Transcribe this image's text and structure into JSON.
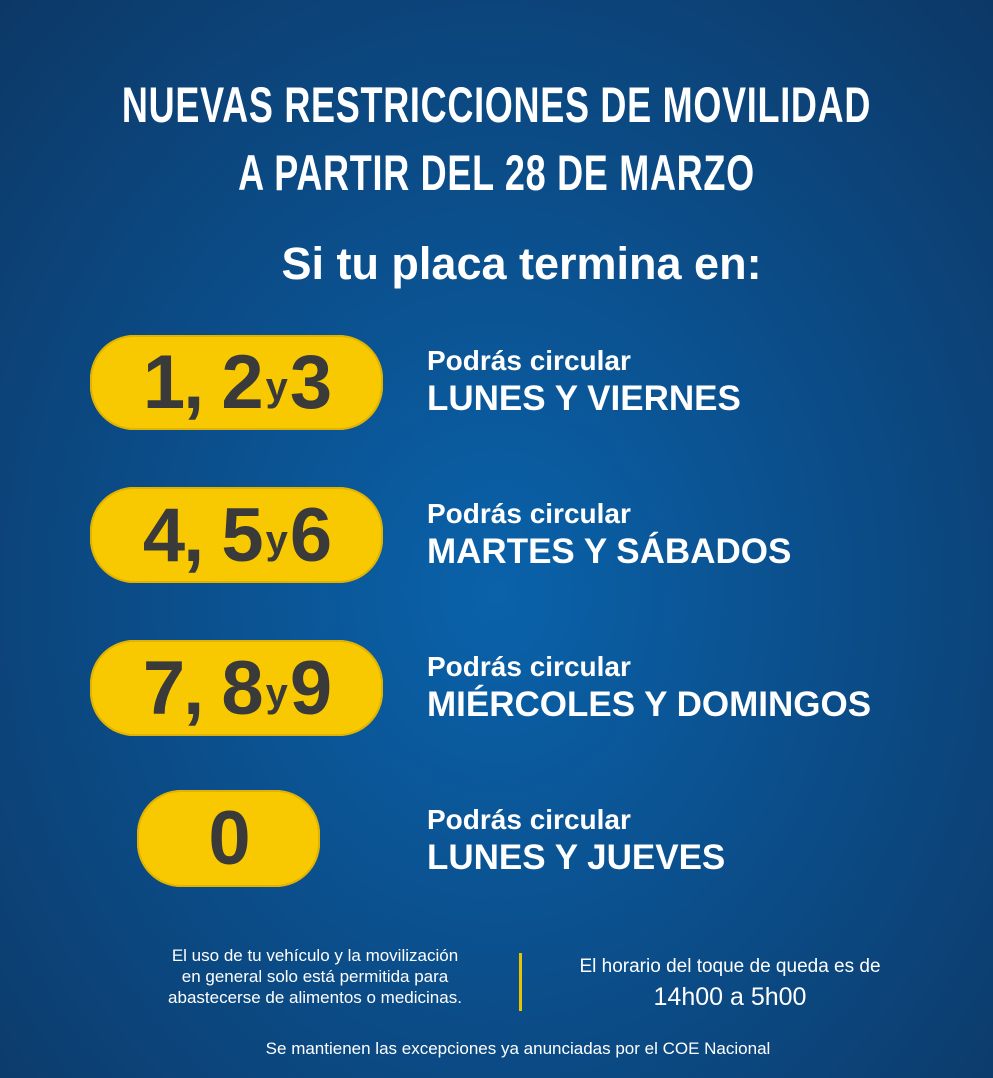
{
  "title": {
    "line1": "NUEVAS RESTRICCIONES DE MOVILIDAD",
    "line2": "A PARTIR DEL 28 DE MARZO"
  },
  "subtitle": "Si tu placa termina en:",
  "rows": [
    {
      "d1": "1,",
      "d2": "2",
      "y": "y",
      "d3": "3",
      "label": "Podrás circular",
      "days": "LUNES Y VIERNES"
    },
    {
      "d1": "4,",
      "d2": "5",
      "y": "y",
      "d3": "6",
      "label": "Podrás circular",
      "days": "MARTES Y SÁBADOS"
    },
    {
      "d1": "7,",
      "d2": "8",
      "y": "y",
      "d3": "9",
      "label": "Podrás circular",
      "days": "MIÉRCOLES Y DOMINGOS"
    },
    {
      "d1": "0",
      "label": "Podrás circular",
      "days": "LUNES Y JUEVES"
    }
  ],
  "footer": {
    "left": [
      "El uso de tu vehículo y la movilización",
      "en general solo está permitida para",
      "abastecerse de alimentos o medicinas."
    ],
    "right_label": "El horario del toque de queda es de",
    "right_time": "14h00 a 5h00",
    "bottom": "Se mantienen las excepciones ya anunciadas por el COE Nacional"
  },
  "colors": {
    "yellow": "#f8c900",
    "blue": "#0b4f8c",
    "digits": "#3a3a3a"
  }
}
